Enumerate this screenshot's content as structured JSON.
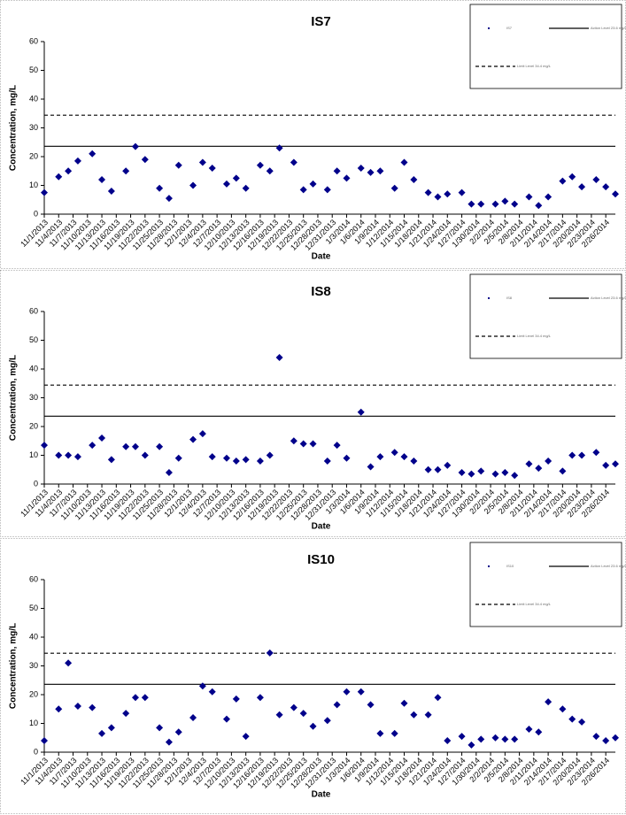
{
  "chart_data": [
    {
      "type": "scatter",
      "title": "IS7",
      "x_label": "Date",
      "y_label": "Concentration, mg/L",
      "x": [
        "11/1/2013",
        "11/4/2013",
        "11/6/2013",
        "11/8/2013",
        "11/11/2013",
        "11/13/2013",
        "11/15/2013",
        "11/18/2013",
        "11/20/2013",
        "11/22/2013",
        "11/25/2013",
        "11/27/2013",
        "11/29/2013",
        "12/2/2013",
        "12/4/2013",
        "12/6/2013",
        "12/9/2013",
        "12/11/2013",
        "12/13/2013",
        "12/16/2013",
        "12/18/2013",
        "12/20/2013",
        "12/23/2013",
        "12/25/2013",
        "12/27/2013",
        "12/30/2013",
        "1/1/2014",
        "1/3/2014",
        "1/6/2014",
        "1/8/2014",
        "1/10/2014",
        "1/13/2014",
        "1/15/2014",
        "1/17/2014",
        "1/20/2014",
        "1/22/2014",
        "1/24/2014",
        "1/27/2014",
        "1/29/2014",
        "1/31/2014",
        "2/3/2014",
        "2/5/2014",
        "2/7/2014",
        "2/10/2014",
        "2/12/2014",
        "2/14/2014",
        "2/17/2014",
        "2/19/2014",
        "2/21/2014",
        "2/24/2014",
        "2/26/2014",
        "2/28/2014"
      ],
      "series": [
        {
          "name": "IS7",
          "color": "#00008b",
          "values": [
            7.5,
            13,
            15,
            18.5,
            21,
            12,
            8,
            15,
            23.5,
            19,
            9,
            5.5,
            17,
            10,
            18,
            16,
            10.5,
            12.5,
            9,
            17,
            15,
            23,
            18,
            8.5,
            10.5,
            8.5,
            15,
            12.5,
            16,
            14.5,
            15,
            9,
            18,
            12,
            7.5,
            6,
            7,
            7.5,
            3.5,
            3.5,
            3.5,
            4.5,
            3.5,
            6,
            3,
            6,
            11.5,
            13,
            9.5,
            12,
            9.5,
            7
          ]
        }
      ],
      "reference_lines": [
        {
          "name": "Action Level 23.6 mg/L",
          "value": 23.6,
          "style": "solid"
        },
        {
          "name": "Limit Level 34.4 mg/L",
          "value": 34.4,
          "style": "dashed"
        }
      ],
      "xlim": [
        "11/1/2013",
        "2/28/2014"
      ],
      "xticks": [
        "11/1/2013",
        "11/4/2013",
        "11/7/2013",
        "11/10/2013",
        "11/13/2013",
        "11/16/2013",
        "11/19/2013",
        "11/22/2013",
        "11/25/2013",
        "11/28/2013",
        "12/1/2013",
        "12/4/2013",
        "12/7/2013",
        "12/10/2013",
        "12/13/2013",
        "12/16/2013",
        "12/19/2013",
        "12/22/2013",
        "12/25/2013",
        "12/28/2013",
        "12/31/2013",
        "1/3/2014",
        "1/6/2014",
        "1/9/2014",
        "1/12/2014",
        "1/15/2014",
        "1/18/2014",
        "1/21/2014",
        "1/24/2014",
        "1/27/2014",
        "1/30/2014",
        "2/2/2014",
        "2/5/2014",
        "2/8/2014",
        "2/11/2014",
        "2/14/2014",
        "2/17/2014",
        "2/20/2014",
        "2/23/2014",
        "2/26/2014"
      ],
      "ylim": [
        0,
        60
      ],
      "yticks": [
        0,
        10,
        20,
        30,
        40,
        50,
        60
      ],
      "grid": false,
      "legend": "upper right"
    },
    {
      "type": "scatter",
      "title": "IS8",
      "x_label": "Date",
      "y_label": "Concentration, mg/L",
      "x": [
        "11/1/2013",
        "11/4/2013",
        "11/6/2013",
        "11/8/2013",
        "11/11/2013",
        "11/13/2013",
        "11/15/2013",
        "11/18/2013",
        "11/20/2013",
        "11/22/2013",
        "11/25/2013",
        "11/27/2013",
        "11/29/2013",
        "12/2/2013",
        "12/4/2013",
        "12/6/2013",
        "12/9/2013",
        "12/11/2013",
        "12/13/2013",
        "12/16/2013",
        "12/18/2013",
        "12/20/2013",
        "12/23/2013",
        "12/25/2013",
        "12/27/2013",
        "12/30/2013",
        "1/1/2014",
        "1/3/2014",
        "1/6/2014",
        "1/8/2014",
        "1/10/2014",
        "1/13/2014",
        "1/15/2014",
        "1/17/2014",
        "1/20/2014",
        "1/22/2014",
        "1/24/2014",
        "1/27/2014",
        "1/29/2014",
        "1/31/2014",
        "2/3/2014",
        "2/5/2014",
        "2/7/2014",
        "2/10/2014",
        "2/12/2014",
        "2/14/2014",
        "2/17/2014",
        "2/19/2014",
        "2/21/2014",
        "2/24/2014",
        "2/26/2014",
        "2/28/2014"
      ],
      "series": [
        {
          "name": "IS8",
          "color": "#00008b",
          "values": [
            13.5,
            10,
            10,
            9.5,
            13.5,
            16,
            8.5,
            13,
            13,
            10,
            13,
            4,
            9,
            15.5,
            17.5,
            9.5,
            9,
            8,
            8.5,
            8,
            10,
            44,
            15,
            14,
            14,
            8,
            13.5,
            9,
            25,
            6,
            9.5,
            11,
            9.5,
            8,
            5,
            5,
            6.5,
            4,
            3.5,
            4.5,
            3.5,
            4,
            3,
            7,
            5.5,
            8,
            4.5,
            10,
            10,
            11,
            6.5,
            7
          ]
        }
      ],
      "reference_lines": [
        {
          "name": "Action Level 23.6 mg/L",
          "value": 23.6,
          "style": "solid"
        },
        {
          "name": "Limit Level 34.4 mg/L",
          "value": 34.4,
          "style": "dashed"
        }
      ],
      "xlim": [
        "11/1/2013",
        "2/28/2014"
      ],
      "xticks": [
        "11/1/2013",
        "11/4/2013",
        "11/7/2013",
        "11/10/2013",
        "11/13/2013",
        "11/16/2013",
        "11/19/2013",
        "11/22/2013",
        "11/25/2013",
        "11/28/2013",
        "12/1/2013",
        "12/4/2013",
        "12/7/2013",
        "12/10/2013",
        "12/13/2013",
        "12/16/2013",
        "12/19/2013",
        "12/22/2013",
        "12/25/2013",
        "12/28/2013",
        "12/31/2013",
        "1/3/2014",
        "1/6/2014",
        "1/9/2014",
        "1/12/2014",
        "1/15/2014",
        "1/18/2014",
        "1/21/2014",
        "1/24/2014",
        "1/27/2014",
        "1/30/2014",
        "2/2/2014",
        "2/5/2014",
        "2/8/2014",
        "2/11/2014",
        "2/14/2014",
        "2/17/2014",
        "2/20/2014",
        "2/23/2014",
        "2/26/2014"
      ],
      "ylim": [
        0,
        60
      ],
      "yticks": [
        0,
        10,
        20,
        30,
        40,
        50,
        60
      ],
      "grid": false,
      "legend": "upper right"
    },
    {
      "type": "scatter",
      "title": "IS10",
      "x_label": "Date",
      "y_label": "Concentration, mg/L",
      "x": [
        "11/1/2013",
        "11/4/2013",
        "11/6/2013",
        "11/8/2013",
        "11/11/2013",
        "11/13/2013",
        "11/15/2013",
        "11/18/2013",
        "11/20/2013",
        "11/22/2013",
        "11/25/2013",
        "11/27/2013",
        "11/29/2013",
        "12/2/2013",
        "12/4/2013",
        "12/6/2013",
        "12/9/2013",
        "12/11/2013",
        "12/13/2013",
        "12/16/2013",
        "12/18/2013",
        "12/20/2013",
        "12/23/2013",
        "12/25/2013",
        "12/27/2013",
        "12/30/2013",
        "1/1/2014",
        "1/3/2014",
        "1/6/2014",
        "1/8/2014",
        "1/10/2014",
        "1/13/2014",
        "1/15/2014",
        "1/17/2014",
        "1/20/2014",
        "1/22/2014",
        "1/24/2014",
        "1/27/2014",
        "1/29/2014",
        "1/31/2014",
        "2/3/2014",
        "2/5/2014",
        "2/7/2014",
        "2/10/2014",
        "2/12/2014",
        "2/14/2014",
        "2/17/2014",
        "2/19/2014",
        "2/21/2014",
        "2/24/2014",
        "2/26/2014",
        "2/28/2014"
      ],
      "series": [
        {
          "name": "IS10",
          "color": "#00008b",
          "values": [
            4,
            15,
            31,
            16,
            15.5,
            6.5,
            8.5,
            13.5,
            19,
            19,
            8.5,
            3.5,
            7,
            12,
            23,
            21,
            11.5,
            18.5,
            5.5,
            19,
            34.5,
            13,
            15.5,
            13.5,
            9,
            11,
            16.5,
            21,
            21,
            16.5,
            6.5,
            6.5,
            17,
            13,
            13,
            19,
            4,
            5.5,
            2.5,
            4.5,
            5,
            4.5,
            4.5,
            8,
            7,
            17.5,
            15,
            11.5,
            10.5,
            5.5,
            4,
            5
          ]
        }
      ],
      "reference_lines": [
        {
          "name": "Action Level 23.6 mg/L",
          "value": 23.6,
          "style": "solid"
        },
        {
          "name": "Limit Level 34.4 mg/L",
          "value": 34.4,
          "style": "dashed"
        }
      ],
      "xlim": [
        "11/1/2013",
        "2/28/2014"
      ],
      "xticks": [
        "11/1/2013",
        "11/4/2013",
        "11/7/2013",
        "11/10/2013",
        "11/13/2013",
        "11/16/2013",
        "11/19/2013",
        "11/22/2013",
        "11/25/2013",
        "11/28/2013",
        "12/1/2013",
        "12/4/2013",
        "12/7/2013",
        "12/10/2013",
        "12/13/2013",
        "12/16/2013",
        "12/19/2013",
        "12/22/2013",
        "12/25/2013",
        "12/28/2013",
        "12/31/2013",
        "1/3/2014",
        "1/6/2014",
        "1/9/2014",
        "1/12/2014",
        "1/15/2014",
        "1/18/2014",
        "1/21/2014",
        "1/24/2014",
        "1/27/2014",
        "1/30/2014",
        "2/2/2014",
        "2/5/2014",
        "2/8/2014",
        "2/11/2014",
        "2/14/2014",
        "2/17/2014",
        "2/20/2014",
        "2/23/2014",
        "2/26/2014"
      ],
      "ylim": [
        0,
        60
      ],
      "yticks": [
        0,
        10,
        20,
        30,
        40,
        50,
        60
      ],
      "grid": false,
      "legend": "upper right"
    }
  ]
}
